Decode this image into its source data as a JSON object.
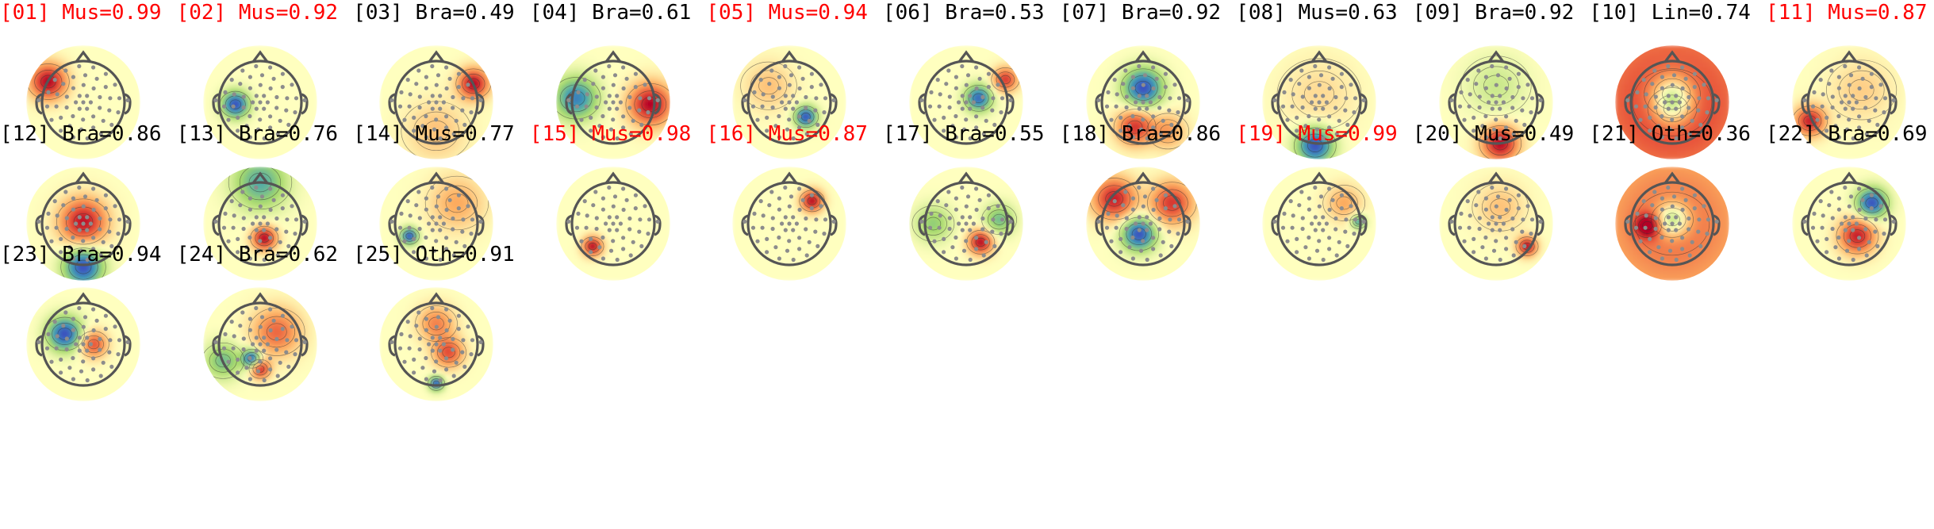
{
  "colors": {
    "flagged": "#ff0000",
    "normal": "#000000",
    "head_outline": "#555555",
    "sensor": "#8c8c8c",
    "contour": "#333333"
  },
  "colormap": [
    "#3b4cc0",
    "#3f9fb5",
    "#a6d96a",
    "#ffffbf",
    "#fdae61",
    "#e8553a",
    "#b40426"
  ],
  "components": [
    {
      "id": "[01]",
      "title": "[01] Mus=0.99",
      "label": "Mus",
      "prob": 0.99,
      "flagged": true,
      "icon": "scalp-topomap-icon",
      "pattern": [
        [
          -0.85,
          0.5,
          1.0,
          0.3
        ]
      ]
    },
    {
      "id": "[02]",
      "title": "[02] Mus=0.92",
      "label": "Mus",
      "prob": 0.92,
      "flagged": true,
      "icon": "scalp-topomap-icon",
      "pattern": [
        [
          -0.6,
          -0.05,
          -1.0,
          0.22
        ]
      ]
    },
    {
      "id": "[03]",
      "title": "[03] Bra=0.49",
      "label": "Bra",
      "prob": 0.49,
      "flagged": false,
      "icon": "scalp-topomap-icon",
      "pattern": [
        [
          0.9,
          0.45,
          1.0,
          0.25
        ],
        [
          0.0,
          -0.7,
          0.25,
          0.5
        ]
      ]
    },
    {
      "id": "[04]",
      "title": "[04] Bra=0.61",
      "label": "Bra",
      "prob": 0.61,
      "flagged": false,
      "icon": "scalp-topomap-icon",
      "pattern": [
        [
          0.9,
          -0.05,
          1.0,
          0.35
        ],
        [
          -0.9,
          0.1,
          -0.8,
          0.35
        ]
      ]
    },
    {
      "id": "[05]",
      "title": "[05] Mus=0.94",
      "label": "Mus",
      "prob": 0.94,
      "flagged": true,
      "icon": "scalp-topomap-icon",
      "pattern": [
        [
          0.4,
          -0.35,
          -1.0,
          0.18
        ],
        [
          -0.5,
          0.4,
          0.25,
          0.4
        ]
      ]
    },
    {
      "id": "[06]",
      "title": "[06] Bra=0.53",
      "label": "Bra",
      "prob": 0.53,
      "flagged": false,
      "icon": "scalp-topomap-icon",
      "pattern": [
        [
          0.3,
          0.1,
          -0.9,
          0.22
        ],
        [
          0.95,
          0.55,
          0.8,
          0.2
        ]
      ]
    },
    {
      "id": "[07]",
      "title": "[07] Bra=0.92",
      "label": "Bra",
      "prob": 0.92,
      "flagged": false,
      "icon": "scalp-topomap-icon",
      "pattern": [
        [
          0.0,
          0.35,
          -1.0,
          0.32
        ],
        [
          -0.2,
          -0.6,
          0.8,
          0.3
        ],
        [
          0.6,
          -0.7,
          0.4,
          0.3
        ]
      ]
    },
    {
      "id": "[08]",
      "title": "[08] Mus=0.63",
      "label": "Mus",
      "prob": 0.63,
      "flagged": false,
      "icon": "scalp-topomap-icon",
      "pattern": [
        [
          -0.1,
          -1.05,
          -1.0,
          0.3
        ],
        [
          0.0,
          0.2,
          0.15,
          0.6
        ]
      ]
    },
    {
      "id": "[09]",
      "title": "[09] Bra=0.92",
      "label": "Bra",
      "prob": 0.92,
      "flagged": false,
      "icon": "scalp-topomap-icon",
      "pattern": [
        [
          0.1,
          -1.0,
          1.0,
          0.3
        ],
        [
          0.0,
          0.4,
          -0.2,
          0.5
        ]
      ]
    },
    {
      "id": "[10]",
      "title": "[10] Lin=0.74",
      "label": "Lin",
      "prob": 0.74,
      "flagged": false,
      "icon": "scalp-topomap-icon",
      "pattern": [
        [
          0.0,
          0.2,
          -0.7,
          0.4
        ],
        [
          0.0,
          -0.15,
          -0.5,
          0.35
        ],
        [
          0.0,
          0.0,
          0.85,
          1.6
        ]
      ]
    },
    {
      "id": "[11]",
      "title": "[11] Mus=0.87",
      "label": "Mus",
      "prob": 0.87,
      "flagged": true,
      "icon": "scalp-topomap-icon",
      "pattern": [
        [
          -0.95,
          -0.45,
          0.9,
          0.25
        ],
        [
          0.3,
          0.3,
          0.2,
          0.5
        ]
      ]
    },
    {
      "id": "[12]",
      "title": "[12] Bra=0.86",
      "label": "Bra",
      "prob": 0.86,
      "flagged": false,
      "icon": "scalp-topomap-icon",
      "pattern": [
        [
          0.0,
          0.05,
          0.95,
          0.38
        ],
        [
          0.0,
          -1.05,
          -1.0,
          0.32
        ]
      ]
    },
    {
      "id": "[13]",
      "title": "[13] Bra=0.76",
      "label": "Bra",
      "prob": 0.76,
      "flagged": false,
      "icon": "scalp-topomap-icon",
      "pattern": [
        [
          0.1,
          -0.35,
          1.0,
          0.2
        ],
        [
          0.0,
          1.0,
          -0.6,
          0.45
        ]
      ]
    },
    {
      "id": "[14]",
      "title": "[14] Mus=0.77",
      "label": "Mus",
      "prob": 0.77,
      "flagged": false,
      "icon": "scalp-topomap-icon",
      "pattern": [
        [
          -0.65,
          -0.3,
          -1.0,
          0.14
        ],
        [
          0.5,
          0.5,
          0.35,
          0.45
        ]
      ]
    },
    {
      "id": "[15]",
      "title": "[15] Mus=0.98",
      "label": "Mus",
      "prob": 0.98,
      "flagged": true,
      "icon": "scalp-topomap-icon",
      "pattern": [
        [
          -0.5,
          -0.55,
          1.0,
          0.16
        ]
      ]
    },
    {
      "id": "[16]",
      "title": "[16] Mus=0.87",
      "label": "Mus",
      "prob": 0.87,
      "flagged": true,
      "icon": "scalp-topomap-icon",
      "pattern": [
        [
          0.55,
          0.55,
          1.0,
          0.18
        ]
      ]
    },
    {
      "id": "[17]",
      "title": "[17] Bra=0.55",
      "label": "Bra",
      "prob": 0.55,
      "flagged": false,
      "icon": "scalp-topomap-icon",
      "pattern": [
        [
          0.35,
          -0.45,
          1.0,
          0.2
        ],
        [
          0.8,
          0.1,
          -0.5,
          0.25
        ],
        [
          -0.8,
          0.0,
          -0.4,
          0.3
        ]
      ]
    },
    {
      "id": "[18]",
      "title": "[18] Bra=0.86",
      "label": "Bra",
      "prob": 0.86,
      "flagged": false,
      "icon": "scalp-topomap-icon",
      "pattern": [
        [
          -0.1,
          -0.25,
          -1.0,
          0.28
        ],
        [
          -0.7,
          0.6,
          0.9,
          0.35
        ],
        [
          0.7,
          0.5,
          0.8,
          0.35
        ]
      ]
    },
    {
      "id": "[19]",
      "title": "[19] Mus=0.99",
      "label": "Mus",
      "prob": 0.99,
      "flagged": true,
      "icon": "scalp-topomap-icon",
      "pattern": [
        [
          0.95,
          0.05,
          -0.7,
          0.12
        ],
        [
          0.6,
          0.5,
          0.35,
          0.3
        ]
      ]
    },
    {
      "id": "[20]",
      "title": "[20] Mus=0.49",
      "label": "Mus",
      "prob": 0.49,
      "flagged": false,
      "icon": "scalp-topomap-icon",
      "pattern": [
        [
          0.75,
          -0.55,
          1.0,
          0.16
        ],
        [
          0.1,
          0.4,
          0.25,
          0.4
        ]
      ]
    },
    {
      "id": "[21]",
      "title": "[21] Oth=0.36",
      "label": "Oth",
      "prob": 0.36,
      "flagged": false,
      "icon": "scalp-topomap-icon",
      "pattern": [
        [
          0.0,
          0.1,
          -0.8,
          0.3
        ],
        [
          -0.6,
          -0.05,
          0.9,
          0.2
        ],
        [
          0.0,
          0.0,
          0.6,
          1.5
        ]
      ]
    },
    {
      "id": "[22]",
      "title": "[22] Bra=0.69",
      "label": "Bra",
      "prob": 0.69,
      "flagged": false,
      "icon": "scalp-topomap-icon",
      "pattern": [
        [
          0.55,
          0.5,
          -1.0,
          0.25
        ],
        [
          0.2,
          -0.3,
          0.9,
          0.3
        ]
      ]
    },
    {
      "id": "[23]",
      "title": "[23] Bra=0.94",
      "label": "Bra",
      "prob": 0.94,
      "flagged": false,
      "icon": "scalp-topomap-icon",
      "pattern": [
        [
          -0.45,
          0.25,
          -1.0,
          0.28
        ],
        [
          0.25,
          0.0,
          0.7,
          0.22
        ]
      ]
    },
    {
      "id": "[24]",
      "title": "[24] Bra=0.62",
      "label": "Bra",
      "prob": 0.62,
      "flagged": false,
      "icon": "scalp-topomap-icon",
      "pattern": [
        [
          -0.2,
          -0.35,
          -1.0,
          0.16
        ],
        [
          0.0,
          -0.6,
          0.9,
          0.16
        ],
        [
          0.4,
          0.3,
          0.6,
          0.4
        ],
        [
          -0.9,
          -0.4,
          -0.5,
          0.3
        ]
      ]
    },
    {
      "id": "[25]",
      "title": "[25] Oth=0.91",
      "label": "Oth",
      "prob": 0.91,
      "flagged": false,
      "icon": "scalp-topomap-icon",
      "pattern": [
        [
          0.0,
          -0.95,
          -1.0,
          0.12
        ],
        [
          0.3,
          -0.2,
          0.7,
          0.25
        ],
        [
          0.0,
          0.5,
          0.5,
          0.3
        ]
      ]
    }
  ]
}
